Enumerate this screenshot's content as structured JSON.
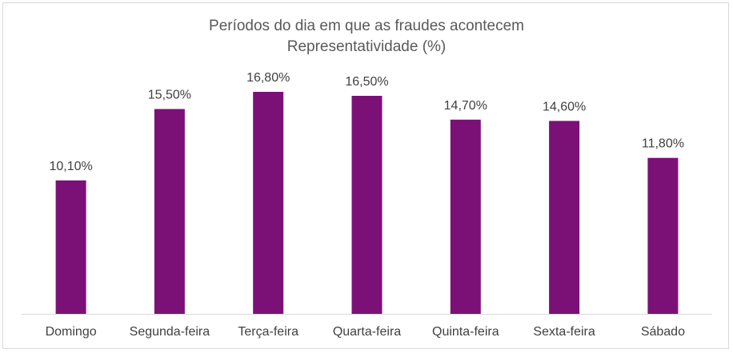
{
  "chart_data": {
    "type": "bar",
    "title": "Períodos do dia em que as fraudes acontecem",
    "subtitle": "Representatividade (%)",
    "categories": [
      "Domingo",
      "Segunda-feira",
      "Terça-feira",
      "Quarta-feira",
      "Quinta-feira",
      "Sexta-feira",
      "Sábado"
    ],
    "values": [
      10.1,
      15.5,
      16.8,
      16.5,
      14.7,
      14.6,
      11.8
    ],
    "data_labels": [
      "10,10%",
      "15,50%",
      "16,80%",
      "16,50%",
      "14,70%",
      "14,60%",
      "11,80%"
    ],
    "ylim": [
      0,
      16.8
    ],
    "grid": false,
    "legend": "none",
    "colors": {
      "bar": "#7b1177",
      "axis": "#d9d9d9",
      "text": "#404040",
      "title": "#595959"
    }
  }
}
